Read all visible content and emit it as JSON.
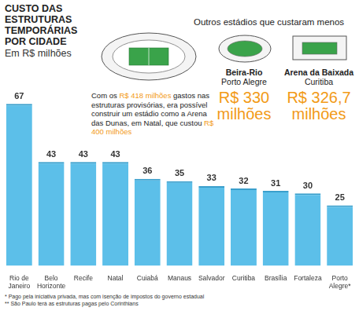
{
  "chart_data": {
    "type": "bar",
    "title": "CUSTO DAS ESTRUTURAS TEMPORÁRIAS POR CIDADE",
    "subtitle": "Em R$ milhões",
    "annotation": [
      "Com os ",
      "R$ 418 milhões",
      " gastos nas estruturas provisórias, era possível construir um estádio como a Arena das Dunas, em Natal, que custou ",
      "R$ 400 milhões"
    ],
    "stadiums_title": "Outros estádios que custaram menos",
    "stadiums": [
      {
        "name": "Beira-Rio",
        "city": "Porto Alegre",
        "cost": "R$ 330 milhões"
      },
      {
        "name": "Arena da Baixada",
        "city": "Curitiba",
        "cost": "R$ 326,7 milhões"
      }
    ],
    "footnotes": [
      "* Pago pela iniciativa privada, mas com isenção de impostos do governo estadual",
      "** São Paulo terá as estruturas pagas pelo Corinthians"
    ],
    "categories": [
      "Rio de Janeiro",
      "Belo Horizonte",
      "Recife",
      "Natal",
      "Cuiabá",
      "Manaus",
      "Salvador",
      "Curitiba",
      "Brasília",
      "Fortaleza",
      "Porto Alegre*"
    ],
    "values": [
      67,
      43,
      43,
      43,
      36,
      35,
      33,
      32,
      31,
      30,
      25
    ],
    "color": "#5cbfe9",
    "ylim": [
      0,
      70
    ],
    "grid": false,
    "data_labels": true,
    "tick_labels": "x"
  }
}
